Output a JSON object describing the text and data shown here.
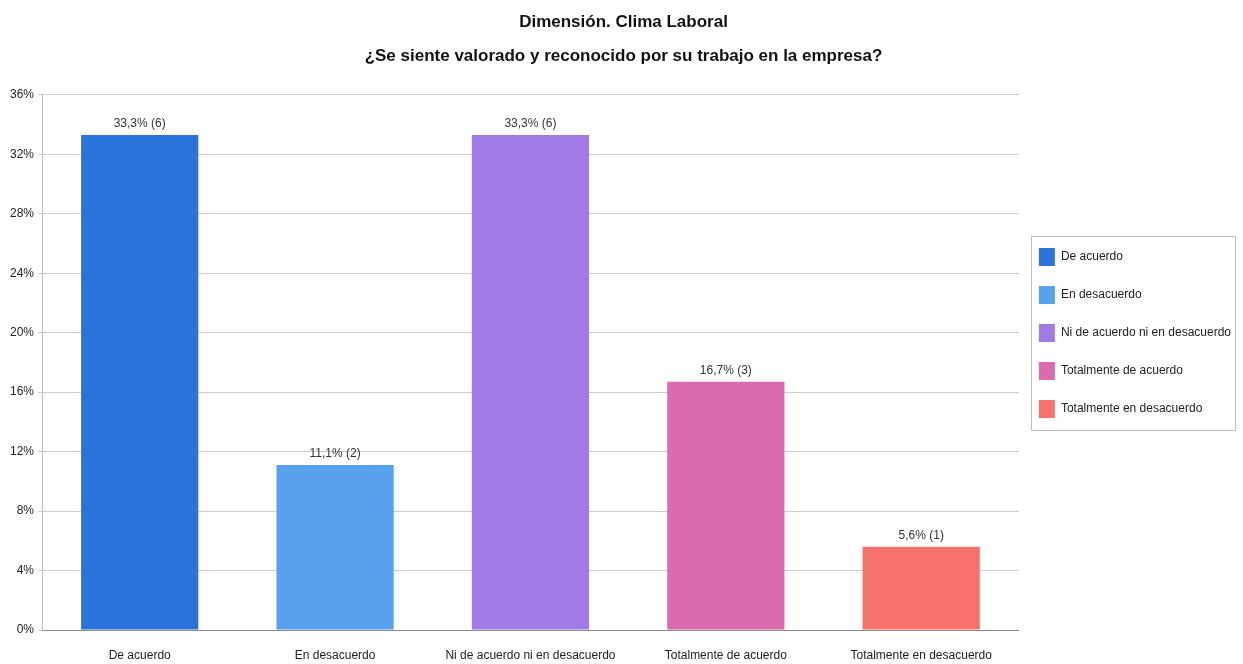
{
  "chart_data": {
    "type": "bar",
    "title": "Dimensión. Clima Laboral",
    "subtitle": "¿Se siente valorado y reconocido por su trabajo en la empresa?",
    "categories": [
      "De acuerdo",
      "En desacuerdo",
      "Ni de acuerdo ni en desacuerdo",
      "Totalmente de acuerdo",
      "Totalmente en desacuerdo"
    ],
    "series": [
      {
        "name": "De acuerdo",
        "color": "#2b72da",
        "values": [
          33.3,
          null,
          null,
          null,
          null
        ],
        "value_labels": [
          "33,3% (6)",
          null,
          null,
          null,
          null
        ]
      },
      {
        "name": "En desacuerdo",
        "color": "#58a1ee",
        "values": [
          null,
          11.1,
          null,
          null,
          null
        ],
        "value_labels": [
          null,
          "11,1% (2)",
          null,
          null,
          null
        ]
      },
      {
        "name": "Ni de acuerdo ni en desacuerdo",
        "color": "#a27ae6",
        "values": [
          null,
          null,
          33.3,
          null,
          null
        ],
        "value_labels": [
          null,
          null,
          "33,3% (6)",
          null,
          null
        ]
      },
      {
        "name": "Totalmente de acuerdo",
        "color": "#da6bad",
        "values": [
          null,
          null,
          null,
          16.7,
          null
        ],
        "value_labels": [
          null,
          null,
          null,
          "16,7% (3)",
          null
        ]
      },
      {
        "name": "Totalmente en desacuerdo",
        "color": "#f7716d",
        "values": [
          null,
          null,
          null,
          null,
          5.6
        ],
        "value_labels": [
          null,
          null,
          null,
          null,
          "5,6% (1)"
        ]
      }
    ],
    "ylim": [
      0,
      36
    ],
    "yticks": [
      {
        "value": 0,
        "label": "0%"
      },
      {
        "value": 4,
        "label": "4%"
      },
      {
        "value": 8,
        "label": "8%"
      },
      {
        "value": 12,
        "label": "12%"
      },
      {
        "value": 16,
        "label": "16%"
      },
      {
        "value": 20,
        "label": "20%"
      },
      {
        "value": 24,
        "label": "24%"
      },
      {
        "value": 28,
        "label": "28%"
      },
      {
        "value": 32,
        "label": "32%"
      },
      {
        "value": 36,
        "label": "36%"
      }
    ],
    "grid": "y",
    "legend": "right"
  }
}
